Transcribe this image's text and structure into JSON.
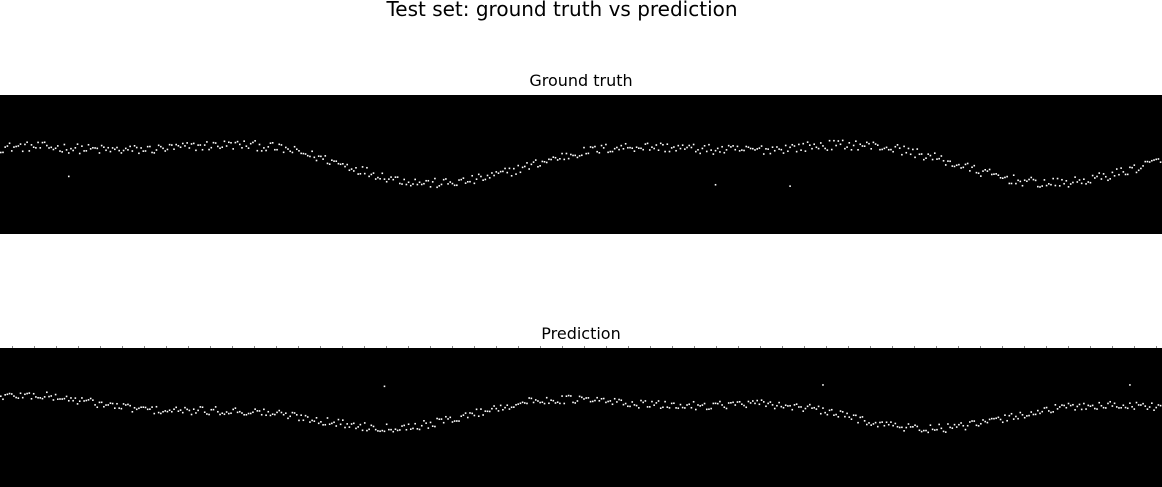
{
  "figure": {
    "title": "Test set: ground truth vs prediction"
  },
  "chart_data": [
    {
      "type": "scatter",
      "title": "Ground truth",
      "background": "#000000",
      "marker_color": "#ffffff",
      "axes_visible": false,
      "ylim": [
        0,
        1
      ],
      "n_columns": 530,
      "wave": {
        "base": 0.55,
        "components": [
          {
            "amplitude": 0.12,
            "period_columns": 280,
            "phase": 0.2
          },
          {
            "amplitude": 0.06,
            "period_columns": 140,
            "phase": 2.1
          }
        ],
        "noise": 0.035
      },
      "outliers": [
        {
          "x": 360,
          "y": 0.35
        },
        {
          "x": 31,
          "y": 0.42
        },
        {
          "x": 326,
          "y": 0.36
        }
      ]
    },
    {
      "type": "scatter",
      "title": "Prediction",
      "background": "#000000",
      "marker_color": "#ffffff",
      "axes_visible": false,
      "ylim": [
        0,
        1
      ],
      "n_columns": 530,
      "wave": {
        "base": 0.55,
        "components": [
          {
            "amplitude": 0.085,
            "period_columns": 265,
            "phase": 0.9
          },
          {
            "amplitude": 0.04,
            "period_columns": 120,
            "phase": 1.4
          }
        ],
        "noise": 0.03
      },
      "outliers": [
        {
          "x": 175,
          "y": 0.73
        },
        {
          "x": 375,
          "y": 0.74
        },
        {
          "x": 515,
          "y": 0.74
        }
      ]
    }
  ]
}
